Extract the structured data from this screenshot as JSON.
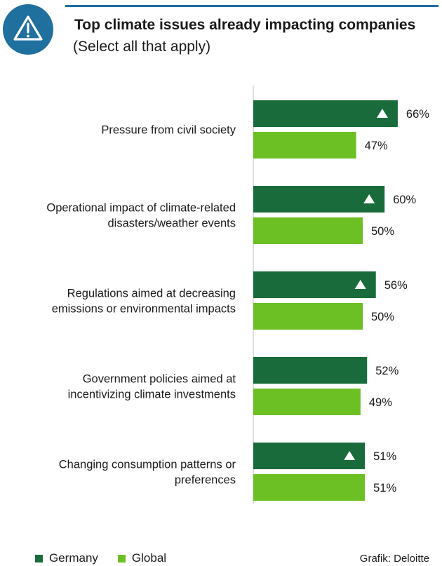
{
  "header": {
    "title": "Top climate issues already impacting companies",
    "subtitle": "(Select all that apply)"
  },
  "icon": {
    "name": "warning-triangle-icon",
    "color": "#1f6f9f"
  },
  "colors": {
    "germany": "#1a6b3c",
    "global": "#6cc024",
    "accent_rule": "#1f6f9f"
  },
  "chart_data": {
    "type": "bar",
    "orientation": "horizontal",
    "title": "Top climate issues already impacting companies",
    "subtitle": "(Select all that apply)",
    "xlabel": "",
    "ylabel": "",
    "xlim": [
      0,
      100
    ],
    "categories": [
      "Pressure from civil society",
      "Operational impact of climate-related disasters/weather events",
      "Regulations aimed at decreasing emissions or environmental impacts",
      "Government policies aimed at incentivizing climate investments",
      "Changing consumption patterns or preferences"
    ],
    "category_lines": [
      [
        "Pressure from civil society"
      ],
      [
        "Operational impact of climate-related",
        "disasters/weather events"
      ],
      [
        "Regulations aimed at decreasing",
        "emissions or environmental impacts"
      ],
      [
        "Government policies aimed at",
        "incentivizing climate investments"
      ],
      [
        "Changing consumption patterns or",
        "preferences"
      ]
    ],
    "series": [
      {
        "name": "Germany",
        "values": [
          66,
          60,
          56,
          52,
          51
        ],
        "labels": [
          "66%",
          "60%",
          "56%",
          "52%",
          "51%"
        ],
        "up_markers": [
          true,
          true,
          true,
          false,
          true
        ]
      },
      {
        "name": "Global",
        "values": [
          47,
          50,
          50,
          49,
          51
        ],
        "labels": [
          "47%",
          "50%",
          "50%",
          "49%",
          "51%"
        ]
      }
    ],
    "legend_position": "bottom-left",
    "grid": false
  },
  "legend": [
    {
      "label": "Germany",
      "color": "#1a6b3c"
    },
    {
      "label": "Global",
      "color": "#6cc024"
    }
  ],
  "source": "Grafik: Deloitte"
}
